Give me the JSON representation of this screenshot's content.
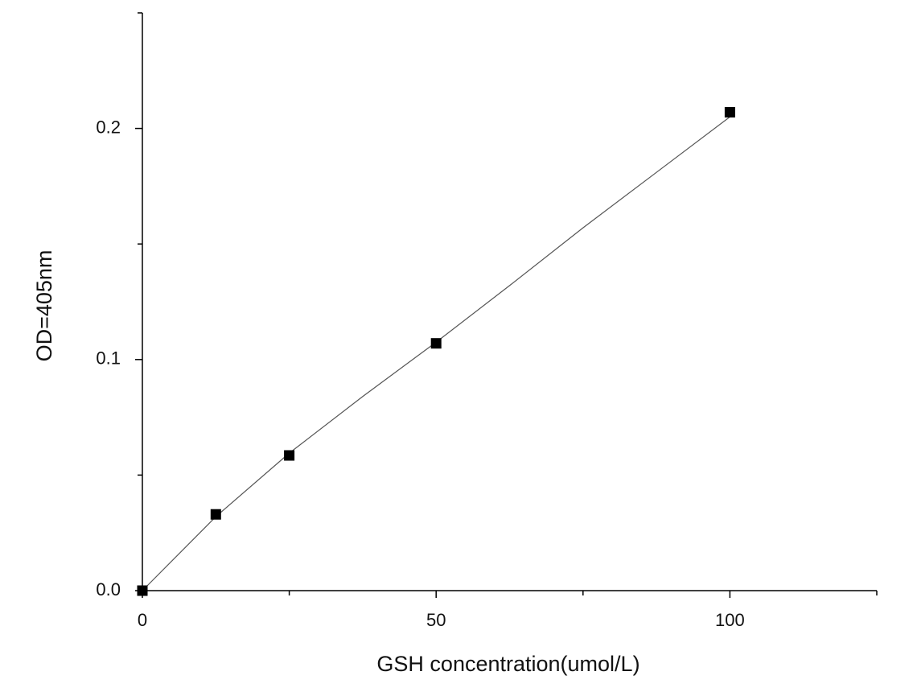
{
  "chart_data": {
    "type": "scatter",
    "x_label": "GSH concentration(umol/L)",
    "y_label": "OD=405nm",
    "x": [
      0,
      12.5,
      25,
      50,
      100
    ],
    "values": [
      0.0,
      0.033,
      0.0585,
      0.107,
      0.207
    ],
    "color": "#000000",
    "curve": {
      "x": [
        0,
        12.5,
        25,
        37.5,
        50,
        62.5,
        75,
        87.5,
        100
      ],
      "values": [
        0.0,
        0.032,
        0.0595,
        0.084,
        0.1075,
        0.132,
        0.157,
        0.181,
        0.205
      ],
      "color": "#555555"
    },
    "xlim": [
      0,
      125
    ],
    "xticks": [
      0,
      50,
      100
    ],
    "x_minor_ticks": [
      25,
      75,
      125
    ],
    "ylim": [
      0,
      0.25
    ],
    "yticks": [
      {
        "value": 0,
        "label": "0.0"
      },
      0.1,
      0.2
    ],
    "y_minor_ticks": [
      0.05,
      0.15,
      0.25
    ],
    "grid": false
  }
}
